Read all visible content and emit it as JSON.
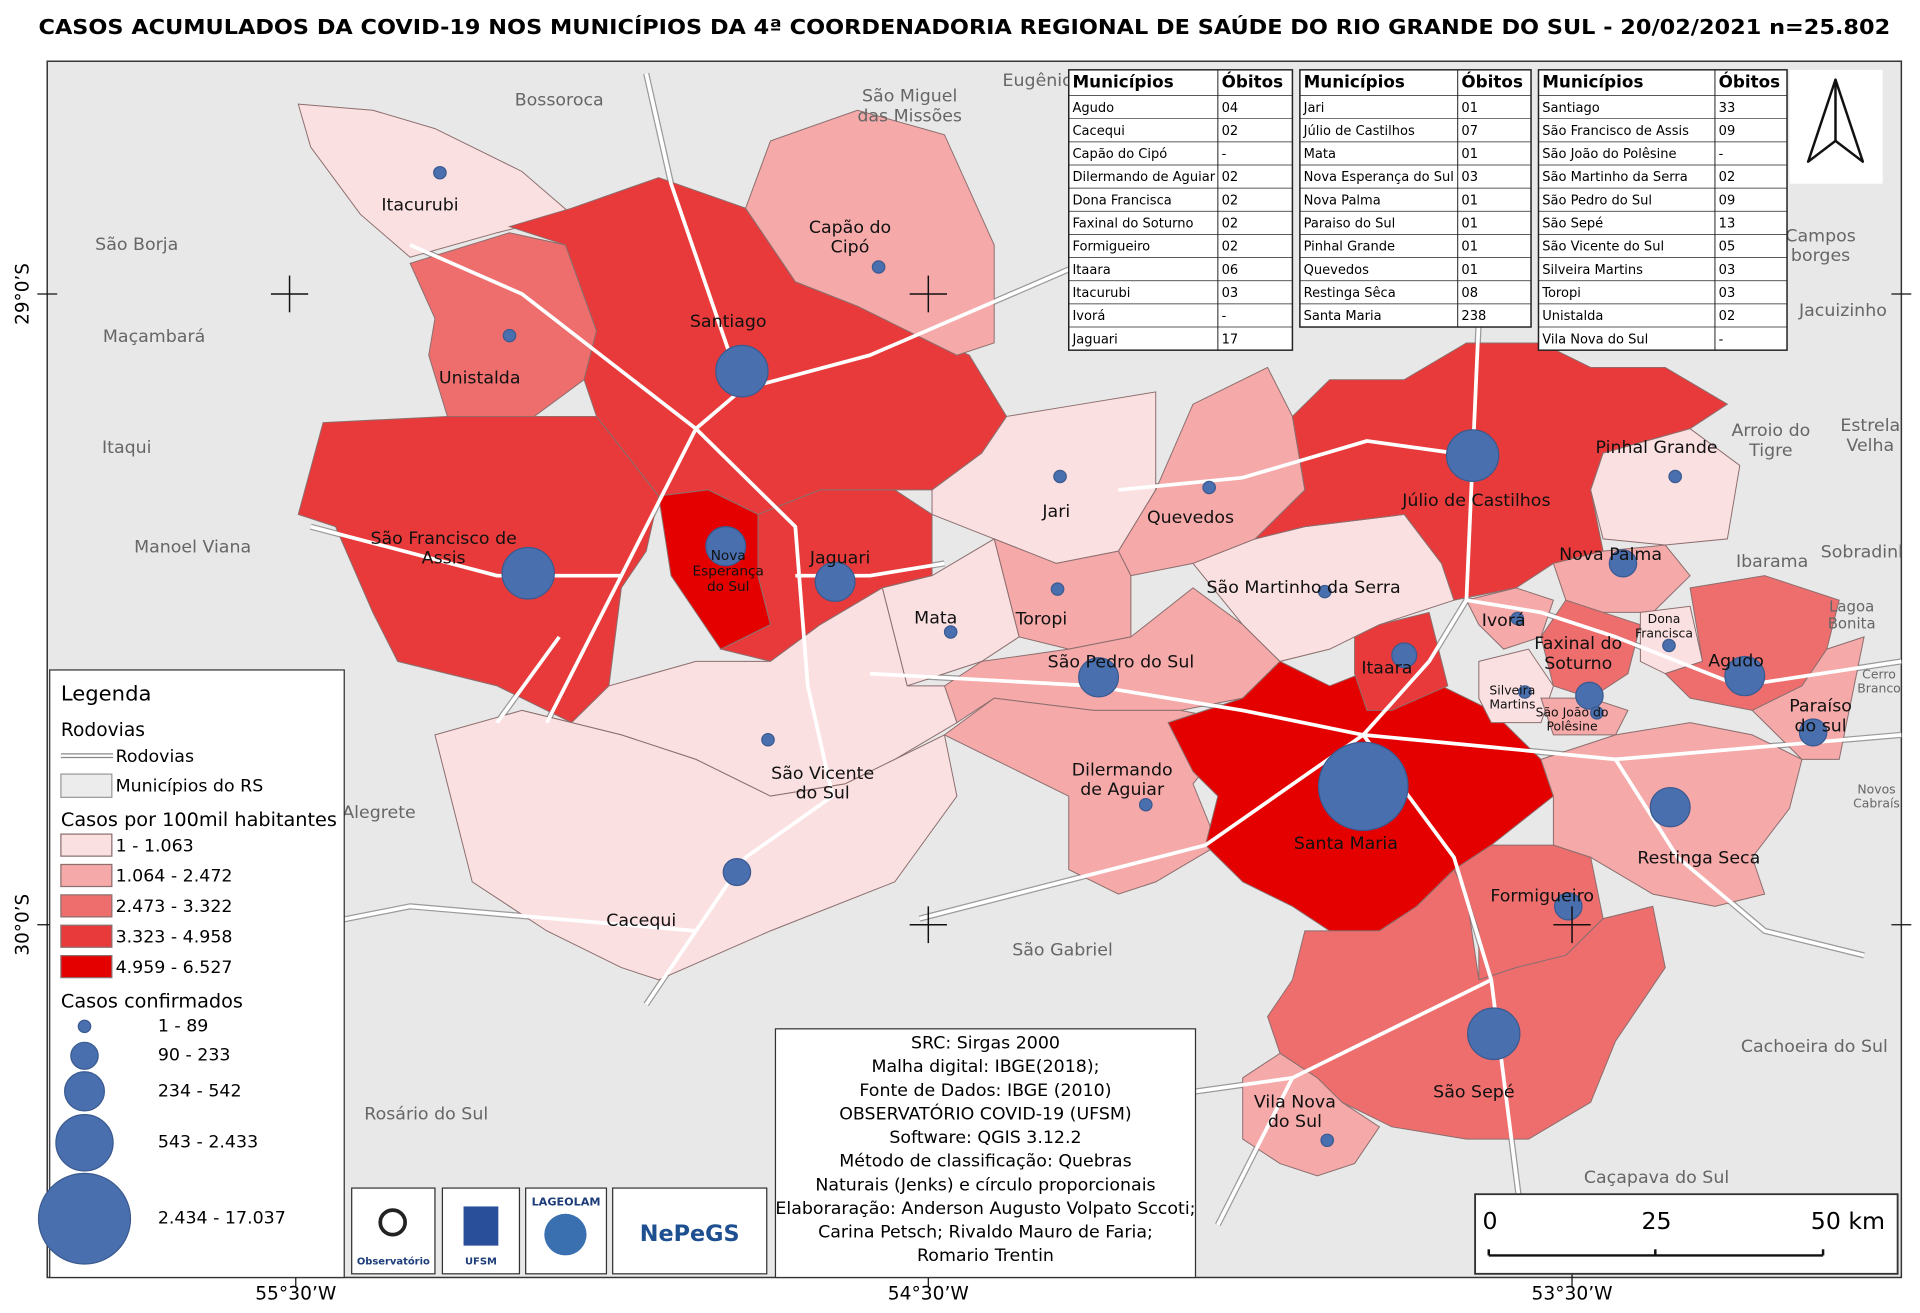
{
  "title": "CASOS ACUMULADOS DA COVID-19 NOS MUNICÍPIOS DA 4ª COORDENADORIA REGIONAL DE SAÚDE DO RIO GRANDE DO SUL - 20/02/2021 n=25.802",
  "tables": [
    {
      "headers": [
        "Municípios",
        "Óbitos"
      ],
      "rows": [
        [
          "Agudo",
          "04"
        ],
        [
          "Cacequi",
          "02"
        ],
        [
          "Capão do Cipó",
          "-"
        ],
        [
          "Dilermando de Aguiar",
          "02"
        ],
        [
          "Dona Francisca",
          "02"
        ],
        [
          "Faxinal do Soturno",
          "02"
        ],
        [
          "Formigueiro",
          "02"
        ],
        [
          "Itaara",
          "06"
        ],
        [
          "Itacurubi",
          "03"
        ],
        [
          "Ivorá",
          "-"
        ],
        [
          "Jaguari",
          "17"
        ]
      ]
    },
    {
      "headers": [
        "Municípios",
        "Óbitos"
      ],
      "rows": [
        [
          "Jari",
          "01"
        ],
        [
          "Júlio de Castilhos",
          "07"
        ],
        [
          "Mata",
          "01"
        ],
        [
          "Nova Esperança do Sul",
          "03"
        ],
        [
          "Nova Palma",
          "01"
        ],
        [
          "Paraiso do Sul",
          "01"
        ],
        [
          "Pinhal Grande",
          "01"
        ],
        [
          "Quevedos",
          "01"
        ],
        [
          "Restinga Sêca",
          "08"
        ],
        [
          "Santa Maria",
          "238"
        ]
      ]
    },
    {
      "headers": [
        "Municípios",
        "Óbitos"
      ],
      "rows": [
        [
          "Santiago",
          "33"
        ],
        [
          "São Francisco de Assis",
          "09"
        ],
        [
          "São João do Polêsine",
          "-"
        ],
        [
          "São Martinho da Serra",
          "02"
        ],
        [
          "São Pedro do Sul",
          "09"
        ],
        [
          "São Sepé",
          "13"
        ],
        [
          "São Vicente do Sul",
          "05"
        ],
        [
          "Silveira Martins",
          "03"
        ],
        [
          "Toropi",
          "03"
        ],
        [
          "Unistalda",
          "02"
        ],
        [
          "Vila Nova do Sul",
          "-"
        ]
      ]
    }
  ],
  "legend": {
    "title": "Legenda",
    "roads_heading": "Rodovias",
    "roads_item": "Rodovias",
    "municipalities_item": "Municípios do RS",
    "rate_title": "Casos por 100mil habitantes",
    "rate_classes": [
      {
        "label": "1 - 1.063",
        "color": "#fbe0e1"
      },
      {
        "label": "1.064 - 2.472",
        "color": "#f5a9a9"
      },
      {
        "label": "2.473 - 3.322",
        "color": "#ee6e6e"
      },
      {
        "label": "3.323 - 4.958",
        "color": "#e83a3a"
      },
      {
        "label": "4.959 - 6.527",
        "color": "#e50000"
      }
    ],
    "cases_title": "Casos confirmados",
    "cases_color": "#4a6fae",
    "cases_classes": [
      "1 - 89",
      "90 - 233",
      "234 - 542",
      "543 - 2.433",
      "2.434 - 17.037"
    ]
  },
  "municipalities": [
    {
      "lines": [
        "Itacurubi"
      ]
    },
    {
      "lines": [
        "Unistalda"
      ]
    },
    {
      "lines": [
        "Santiago"
      ]
    },
    {
      "lines": [
        "Capão do",
        "Cipó"
      ]
    },
    {
      "lines": [
        "São Francisco de",
        "Assis"
      ]
    },
    {
      "lines": [
        "Nova",
        "Esperança",
        "do Sul"
      ]
    },
    {
      "lines": [
        "Jaguari"
      ]
    },
    {
      "lines": [
        "Jari"
      ]
    },
    {
      "lines": [
        "Quevedos"
      ]
    },
    {
      "lines": [
        "Toropi"
      ]
    },
    {
      "lines": [
        "Mata"
      ]
    },
    {
      "lines": [
        "São Pedro do Sul"
      ]
    },
    {
      "lines": [
        "São Vicente",
        "do Sul"
      ]
    },
    {
      "lines": [
        "Cacequi"
      ]
    },
    {
      "lines": [
        "Dilermando",
        "de Aguiar"
      ]
    },
    {
      "lines": [
        "Santa Maria"
      ]
    },
    {
      "lines": [
        "São Martinho da Serra"
      ]
    },
    {
      "lines": [
        "Júlio de Castilhos"
      ]
    },
    {
      "lines": [
        "Pinhal Grande"
      ]
    },
    {
      "lines": [
        "Itaara"
      ]
    },
    {
      "lines": [
        "Ivorá"
      ]
    },
    {
      "lines": [
        "Nova Palma"
      ]
    },
    {
      "lines": [
        "Faxinal do",
        "Soturno"
      ]
    },
    {
      "lines": [
        "Silveira",
        "Martins"
      ]
    },
    {
      "lines": [
        "São João do",
        "Polêsine"
      ]
    },
    {
      "lines": [
        "Dona",
        "Francisca"
      ]
    },
    {
      "lines": [
        "Agudo"
      ]
    },
    {
      "lines": [
        "Paraíso",
        "do sul"
      ]
    },
    {
      "lines": [
        "Restinga Seca"
      ]
    },
    {
      "lines": [
        "Formigueiro"
      ]
    },
    {
      "lines": [
        "São Sepé"
      ]
    },
    {
      "lines": [
        "Vila Nova",
        "do Sul"
      ]
    }
  ],
  "neighbors": [
    {
      "lines": [
        "Bossoroca"
      ]
    },
    {
      "lines": [
        "São Miguel",
        "das Missões"
      ]
    },
    {
      "lines": [
        "Eugênio"
      ]
    },
    {
      "lines": [
        "São Borja"
      ]
    },
    {
      "lines": [
        "Maçambará"
      ]
    },
    {
      "lines": [
        "Itaqui"
      ]
    },
    {
      "lines": [
        "Manoel Viana"
      ]
    },
    {
      "lines": [
        "Alegrete"
      ]
    },
    {
      "lines": [
        "São Gabriel"
      ]
    },
    {
      "lines": [
        "Rosário do Sul"
      ]
    },
    {
      "lines": [
        "Cachoeira do Sul"
      ]
    },
    {
      "lines": [
        "Caçapava do Sul"
      ]
    },
    {
      "lines": [
        "Campos",
        "borges"
      ]
    },
    {
      "lines": [
        "Jacuizinho"
      ]
    },
    {
      "lines": [
        "Arroio do",
        "Tigre"
      ]
    },
    {
      "lines": [
        "Estrela",
        "Velha"
      ]
    },
    {
      "lines": [
        "Ibarama"
      ]
    },
    {
      "lines": [
        "Sobradinho"
      ]
    },
    {
      "lines": [
        "Lagoa",
        "Bonita"
      ]
    },
    {
      "lines": [
        "Cerro",
        "Branco"
      ]
    },
    {
      "lines": [
        "Novos",
        "Cabraís"
      ]
    }
  ],
  "coordinates": {
    "latitude": [
      "29°0’S",
      "30°0’S"
    ],
    "longitude": [
      "55°30’W",
      "54°30’W",
      "53°30’W"
    ]
  },
  "credits": [
    "SRC: Sirgas 2000",
    "Malha digital: IBGE(2018);",
    "Fonte de Dados: IBGE (2010)",
    "OBSERVATÓRIO COVID-19 (UFSM)",
    "Software: QGIS 3.12.2",
    "Método de classificação: Quebras",
    "Naturais (Jenks) e círculo proporcionais",
    "Elaboraração: Anderson Augusto Volpato Sccoti;",
    "Carina Petsch; Rivaldo Mauro de Faria;",
    "Romario Trentin"
  ],
  "scale_bar": [
    "0",
    "25",
    "50 km"
  ],
  "logos": [
    "Observatório",
    "UFSM",
    "LAGEOLAM",
    "NePeGS"
  ]
}
